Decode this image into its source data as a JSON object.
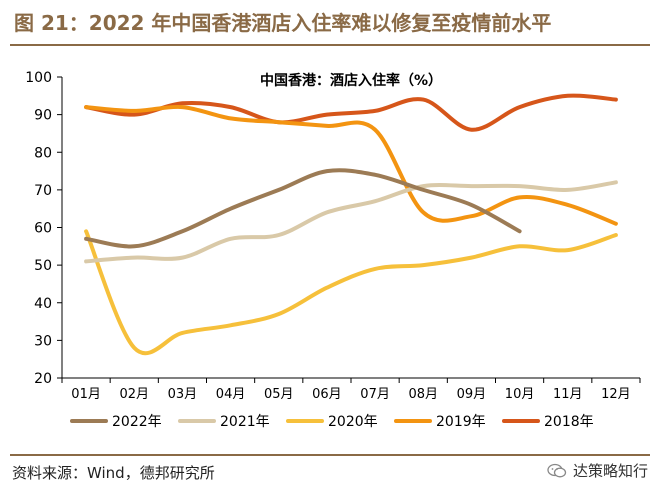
{
  "figure_title": "图 21：2022 年中国香港酒店入住率难以修复至疫情前水平",
  "source": "资料来源：Wind，德邦研究所",
  "watermark": "达策略知行",
  "colors": {
    "title": "#8a6a46",
    "rule": "#8a6a46",
    "axis": "#000000"
  },
  "chart_data": {
    "type": "line",
    "title": "中国香港：酒店入住率（%）",
    "xlabel": "",
    "ylabel": "",
    "categories": [
      "01月",
      "02月",
      "03月",
      "04月",
      "05月",
      "06月",
      "07月",
      "08月",
      "09月",
      "10月",
      "11月",
      "12月"
    ],
    "ylim": [
      20,
      100
    ],
    "yticks": [
      20,
      30,
      40,
      50,
      60,
      70,
      80,
      90,
      100
    ],
    "grid": false,
    "legend_position": "bottom",
    "series": [
      {
        "name": "2022年",
        "color": "#9c7b55",
        "values": [
          57,
          55,
          59,
          65,
          70,
          75,
          74,
          70,
          66,
          59,
          null,
          null
        ]
      },
      {
        "name": "2021年",
        "color": "#d9c9a8",
        "values": [
          51,
          52,
          52,
          57,
          58,
          64,
          67,
          71,
          71,
          71,
          70,
          72
        ]
      },
      {
        "name": "2020年",
        "color": "#f6c03b",
        "values": [
          59,
          28,
          32,
          34,
          37,
          44,
          49,
          50,
          52,
          55,
          54,
          58
        ]
      },
      {
        "name": "2019年",
        "color": "#f39411",
        "values": [
          92,
          91,
          92,
          89,
          88,
          87,
          86,
          64,
          63,
          68,
          66,
          61
        ]
      },
      {
        "name": "2018年",
        "color": "#d6561a",
        "values": [
          92,
          90,
          93,
          92,
          88,
          90,
          91,
          94,
          86,
          92,
          95,
          94
        ]
      }
    ]
  }
}
